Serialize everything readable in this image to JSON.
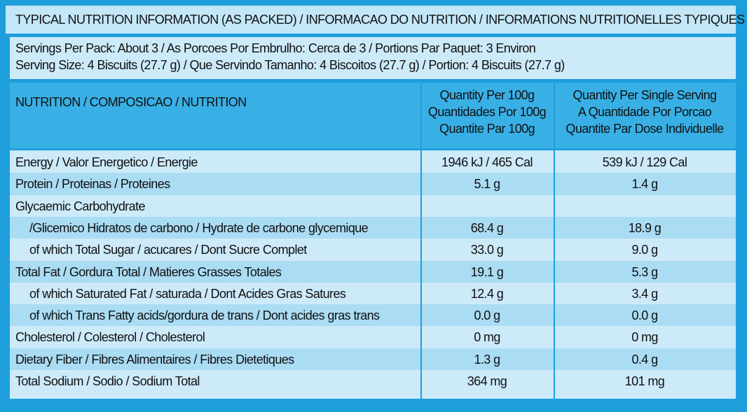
{
  "header": {
    "title": "TYPICAL NUTRITION INFORMATION (AS PACKED) / INFORMACAO DO NUTRITION / INFORMATIONS NUTRITIONELLES TYPIQUES"
  },
  "servings": [
    "Servings Per Pack: About 3 / As Porcoes Por Embrulho: Cerca de 3 / Portions Par Paquet: 3 Environ",
    "Serving Size: 4 Biscuits (27.7 g) / Que Servindo Tamanho: 4 Biscoitos (27.7 g) / Portion: 4 Biscuits (27.7 g)"
  ],
  "table": {
    "columns": [
      [
        "NUTRITION / COMPOSICAO / NUTRITION"
      ],
      [
        "Quantity Per 100g",
        "Quantidades Por 100g",
        "Quantite Par 100g"
      ],
      [
        "Quantity Per Single Serving",
        "A Quantidade Por Porcao",
        "Quantite Par Dose Individuelle"
      ]
    ],
    "rows": [
      {
        "label": "Energy / Valor Energetico / Energie",
        "per_100g": "1946 kJ /  465 Cal",
        "per_serving": "539 kJ / 129 Cal"
      },
      {
        "label": "Protein / Proteinas / Proteines",
        "per_100g": "5.1 g",
        "per_serving": "1.4 g"
      },
      {
        "label": "Glycaemic Carbohydrate"
      },
      {
        "label": "/Glicemico Hidratos de carbono / Hydrate de carbone glycemique",
        "per_100g": "68.4 g",
        "per_serving": "18.9 g",
        "indent": true
      },
      {
        "label": "of which Total Sugar / acucares / Dont Sucre Complet",
        "per_100g": "33.0 g",
        "per_serving": "9.0 g",
        "indent": true
      },
      {
        "label": "Total Fat / Gordura Total / Matieres Grasses Totales",
        "per_100g": "19.1 g",
        "per_serving": "5.3 g"
      },
      {
        "label": "of which Saturated Fat / saturada / Dont Acides Gras Satures",
        "per_100g": "12.4 g",
        "per_serving": "3.4 g",
        "indent": true
      },
      {
        "label": "of which Trans Fatty acids/gordura de trans / Dont acides gras trans",
        "per_100g": "0.0 g",
        "per_serving": "0.0 g",
        "indent": true
      },
      {
        "label": "Cholesterol / Colesterol / Cholesterol",
        "per_100g": "0 mg",
        "per_serving": "0 mg"
      },
      {
        "label": "Dietary Fiber / Fibres Alimentaires / Fibres Dietetiques",
        "per_100g": "1.3 g",
        "per_serving": "0.4 g"
      },
      {
        "label": "Total Sodium / Sodio / Sodium Total",
        "per_100g": "364 mg",
        "per_serving": "101 mg"
      }
    ]
  }
}
